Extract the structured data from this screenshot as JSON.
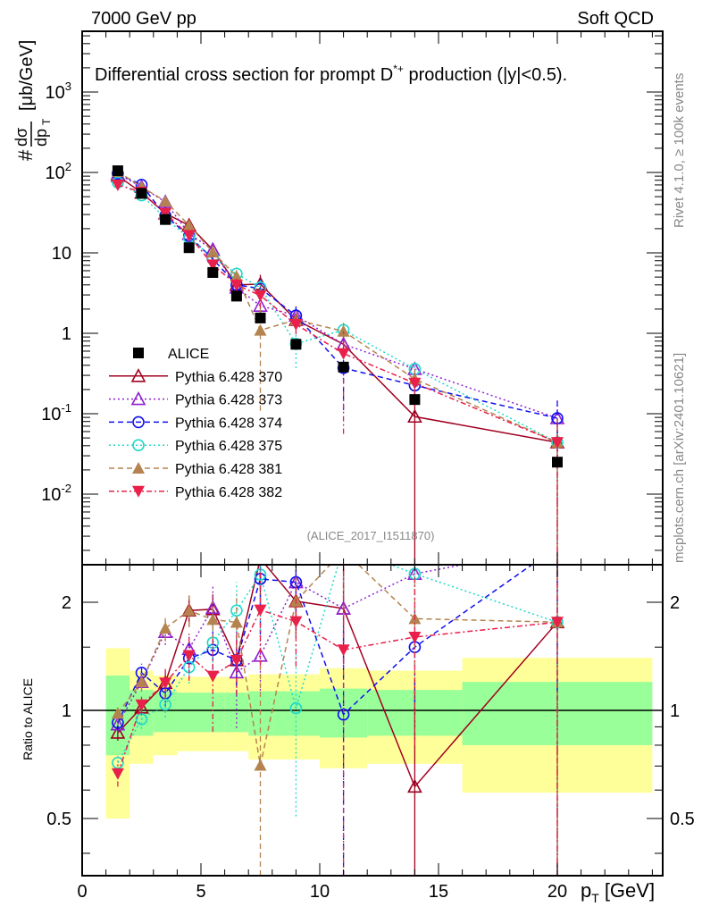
{
  "header": {
    "left": "7000 GeV pp",
    "right": "Soft QCD"
  },
  "side_text": {
    "rivet": "Rivet 4.1.0, ≥ 100k events",
    "mcplots": "mcplots.cern.ch [arXiv:2401.10621]"
  },
  "analysis_tag": "(ALICE_2017_I1511870)",
  "title": {
    "pre": "Differential cross section for prompt D",
    "sup": "*+",
    "post": " production (|y|<0.5)."
  },
  "ylabel": {
    "hash": "#",
    "num": "dσ",
    "den": "dp",
    "sub": "T",
    "unit": "[μb/GeV]"
  },
  "ratio_ylabel": "Ratio to ALICE",
  "xlabel": {
    "main": "p",
    "sub": "T",
    "unit": "[GeV]"
  },
  "chart_data": {
    "type": "scatter",
    "title": "Differential cross section for prompt D*+ production (|y|<0.5).",
    "xlabel": "p_T [GeV]",
    "ylabel": "# dσ/dp_T [μb/GeV]",
    "xlim": [
      0,
      24.4
    ],
    "ylim": [
      0.0013,
      5600
    ],
    "yscale": "log",
    "ratio_ylim": [
      0.346,
      2.54
    ],
    "ratio_yscale": "log",
    "legend_position": "bottom-left",
    "x": [
      1.5,
      2.5,
      3.5,
      4.5,
      5.5,
      6.5,
      7.5,
      9,
      11,
      14,
      20
    ],
    "bins": [
      [
        1,
        2
      ],
      [
        2,
        3
      ],
      [
        3,
        4
      ],
      [
        4,
        5
      ],
      [
        5,
        6
      ],
      [
        6,
        7
      ],
      [
        7,
        8
      ],
      [
        8,
        10
      ],
      [
        10,
        12
      ],
      [
        12,
        16
      ],
      [
        16,
        24
      ]
    ],
    "x_ticks": [
      "0",
      "5",
      "10",
      "15",
      "20"
    ],
    "y_ticks": [
      {
        "base": "10",
        "exp": "-2"
      },
      {
        "base": "10",
        "exp": "-1"
      },
      {
        "base": "1",
        "exp": ""
      },
      {
        "base": "10",
        "exp": ""
      },
      {
        "base": "10",
        "exp": "2"
      },
      {
        "base": "10",
        "exp": "3"
      }
    ],
    "y_tick_values": [
      0.01,
      0.1,
      1,
      10,
      100,
      1000
    ],
    "ratio_ticks": [
      "0.5",
      "1",
      "2"
    ],
    "ratio_tick_values": [
      0.5,
      1,
      2
    ],
    "reference": {
      "name": "ALICE",
      "color": "#000000",
      "marker": "square",
      "values": [
        105,
        55,
        26,
        11.6,
        5.7,
        2.9,
        1.55,
        0.73,
        0.38,
        0.15,
        0.025
      ],
      "band_stat": [
        [
          0.75,
          1.25
        ],
        [
          0.85,
          1.14
        ],
        [
          0.87,
          1.13
        ],
        [
          0.87,
          1.12
        ],
        [
          0.87,
          1.12
        ],
        [
          0.87,
          1.12
        ],
        [
          0.85,
          1.13
        ],
        [
          0.85,
          1.13
        ],
        [
          0.84,
          1.15
        ],
        [
          0.85,
          1.14
        ],
        [
          0.8,
          1.2
        ]
      ],
      "band_total": [
        [
          0.5,
          1.49
        ],
        [
          0.71,
          1.29
        ],
        [
          0.75,
          1.25
        ],
        [
          0.77,
          1.24
        ],
        [
          0.77,
          1.24
        ],
        [
          0.77,
          1.24
        ],
        [
          0.73,
          1.26
        ],
        [
          0.73,
          1.26
        ],
        [
          0.69,
          1.31
        ],
        [
          0.71,
          1.29
        ],
        [
          0.59,
          1.4
        ]
      ],
      "band_colors": {
        "stat": "#99ff99",
        "total": "#ffff99"
      }
    },
    "series": [
      {
        "name": "Pythia 6.428 370",
        "color": "#a00020",
        "marker": "triangle-open",
        "dash": "",
        "values": [
          91,
          56,
          31,
          22,
          10.9,
          4.0,
          4.1,
          1.47,
          0.73,
          0.092,
          0.044
        ],
        "rel_err": [
          0.05,
          0.05,
          0.08,
          0.1,
          0.1,
          0.15,
          0.3,
          0.2,
          0.3,
          1.0,
          1.0
        ]
      },
      {
        "name": "Pythia 6.428 373",
        "color": "#9020d0",
        "marker": "triangle-open",
        "dash": "2,3",
        "values": [
          96,
          66,
          43,
          17.2,
          11,
          3.7,
          2.2,
          1.66,
          0.73,
          0.36,
          0.088
        ],
        "rel_err": [
          0.05,
          0.05,
          0.08,
          0.1,
          0.15,
          0.3,
          0.2,
          0.2,
          0.3,
          0.2,
          0.7
        ]
      },
      {
        "name": "Pythia 6.428 374",
        "color": "#1010f0",
        "marker": "circle-open",
        "dash": "6,4",
        "values": [
          97,
          70,
          29,
          16.2,
          8.4,
          4.0,
          3.6,
          1.66,
          0.37,
          0.225,
          0.088
        ],
        "rel_err": [
          0.05,
          0.06,
          0.08,
          0.1,
          0.12,
          0.2,
          0.3,
          0.3,
          0.7,
          0.3,
          0.7
        ]
      },
      {
        "name": "Pythia 6.428 375",
        "color": "#20d8c8",
        "marker": "circle-open",
        "dash": "2,3",
        "values": [
          75,
          52,
          27,
          15.3,
          8.8,
          5.5,
          3.7,
          0.74,
          1.1,
          0.36,
          0.044
        ],
        "rel_err": [
          0.05,
          0.06,
          0.08,
          0.1,
          0.12,
          0.2,
          0.3,
          0.5,
          0.3,
          0.2,
          1.0
        ]
      },
      {
        "name": "Pythia 6.428 381",
        "color": "#b5834f",
        "marker": "triangle-filled",
        "dash": "6,4",
        "values": [
          103,
          66,
          44,
          22,
          10.2,
          5.1,
          1.09,
          1.47,
          1.06,
          0.27,
          0.044
        ],
        "rel_err": [
          0.05,
          0.06,
          0.08,
          0.1,
          0.12,
          0.2,
          0.9,
          0.2,
          0.35,
          0.3,
          1.0
        ]
      },
      {
        "name": "Pythia 6.428 382",
        "color": "#e8204a",
        "marker": "triangle-down-filled",
        "dash": "6,3,2,3",
        "values": [
          70,
          57,
          31,
          16.5,
          7.1,
          4.0,
          2.95,
          1.29,
          0.56,
          0.24,
          0.044
        ],
        "rel_err": [
          0.08,
          0.06,
          0.1,
          0.15,
          0.3,
          0.2,
          0.3,
          0.25,
          0.9,
          0.5,
          1.0
        ]
      }
    ]
  }
}
